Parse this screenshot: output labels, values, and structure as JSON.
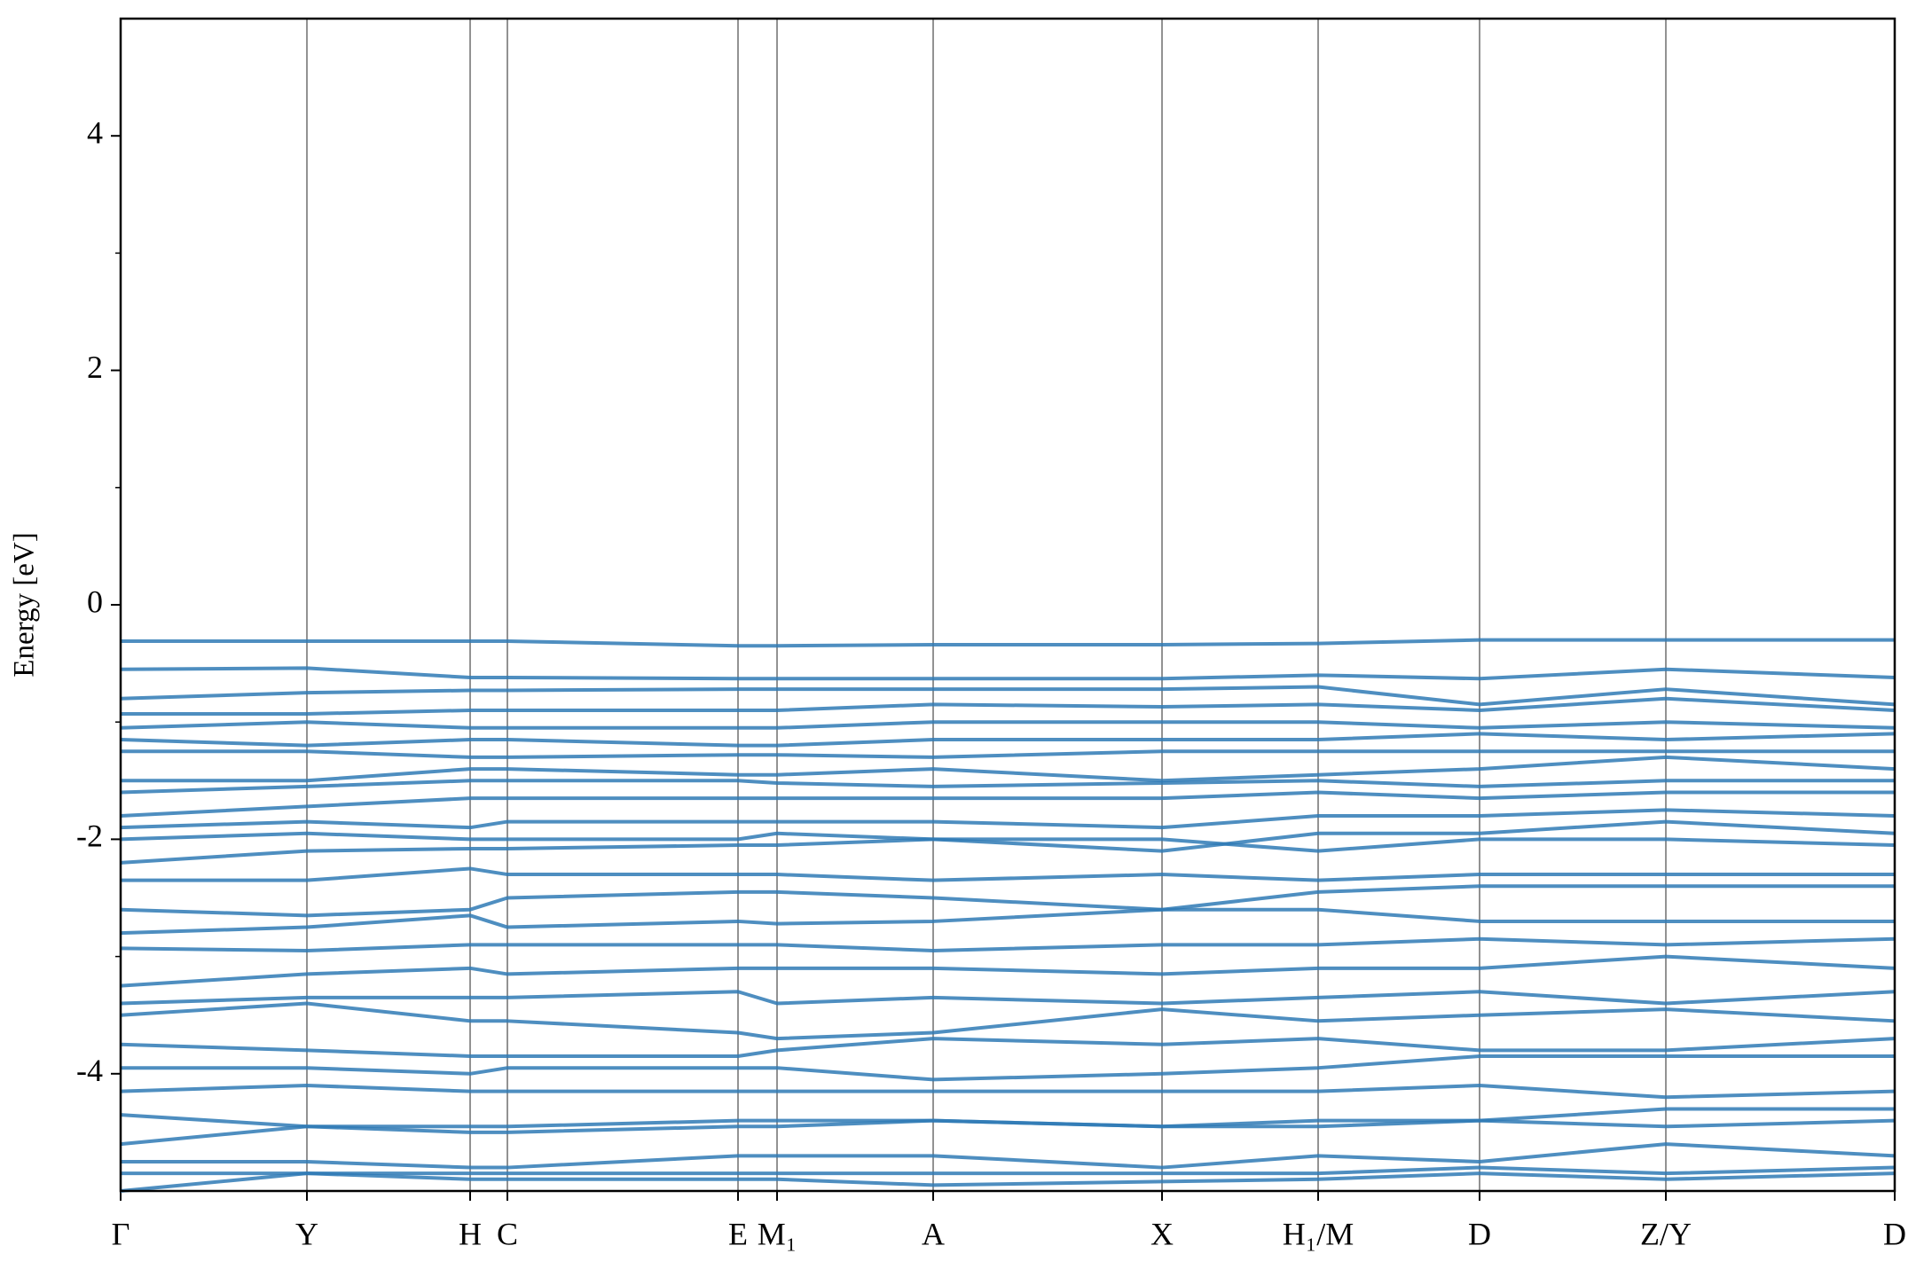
{
  "chart_data": {
    "type": "line",
    "ylabel": "Energy [eV]",
    "x": [
      0,
      0.105,
      0.197,
      0.218,
      0.348,
      0.37,
      0.458,
      0.587,
      0.675,
      0.766,
      0.871,
      1.0
    ],
    "xlim": [
      0,
      1.0
    ],
    "xticks": [
      {
        "value": 0,
        "label": "Γ"
      },
      {
        "value": 0.105,
        "label": "Y"
      },
      {
        "value": 0.197,
        "label": "H"
      },
      {
        "value": 0.218,
        "label": "C"
      },
      {
        "value": 0.348,
        "label": "E"
      },
      {
        "value": 0.37,
        "label": "M₁"
      },
      {
        "value": 0.458,
        "label": "A"
      },
      {
        "value": 0.587,
        "label": "X"
      },
      {
        "value": 0.675,
        "label": "H₁/M"
      },
      {
        "value": 0.766,
        "label": "D"
      },
      {
        "value": 0.871,
        "label": "Z/Y"
      },
      {
        "value": 1.0,
        "label": "D"
      }
    ],
    "ylim": [
      -5,
      5
    ],
    "yticks": [
      -4,
      -2,
      0,
      2,
      4
    ],
    "yminorticks": [
      -3,
      -1,
      1,
      3
    ],
    "grid": "x",
    "color": "#2f7ab5",
    "series": [
      {
        "values": [
          -0.31,
          -0.31,
          -0.31,
          -0.31,
          -0.35,
          -0.35,
          -0.34,
          -0.34,
          -0.33,
          -0.3,
          -0.3,
          -0.3
        ]
      },
      {
        "values": [
          -0.55,
          -0.54,
          -0.62,
          -0.62,
          -0.63,
          -0.63,
          -0.63,
          -0.63,
          -0.6,
          -0.63,
          -0.55,
          -0.62
        ]
      },
      {
        "values": [
          -0.8,
          -0.75,
          -0.73,
          -0.73,
          -0.72,
          -0.72,
          -0.72,
          -0.72,
          -0.7,
          -0.85,
          -0.72,
          -0.85
        ]
      },
      {
        "values": [
          -0.93,
          -0.93,
          -0.9,
          -0.9,
          -0.9,
          -0.9,
          -0.85,
          -0.87,
          -0.85,
          -0.9,
          -0.8,
          -0.9
        ]
      },
      {
        "values": [
          -1.05,
          -1.0,
          -1.05,
          -1.05,
          -1.05,
          -1.05,
          -1.0,
          -1.0,
          -1.0,
          -1.05,
          -1.0,
          -1.05
        ]
      },
      {
        "values": [
          -1.15,
          -1.2,
          -1.15,
          -1.15,
          -1.2,
          -1.2,
          -1.15,
          -1.15,
          -1.15,
          -1.1,
          -1.15,
          -1.1
        ]
      },
      {
        "values": [
          -1.25,
          -1.25,
          -1.3,
          -1.3,
          -1.28,
          -1.28,
          -1.3,
          -1.25,
          -1.25,
          -1.25,
          -1.25,
          -1.25
        ]
      },
      {
        "values": [
          -1.5,
          -1.5,
          -1.4,
          -1.4,
          -1.45,
          -1.45,
          -1.4,
          -1.5,
          -1.45,
          -1.4,
          -1.3,
          -1.4
        ]
      },
      {
        "values": [
          -1.6,
          -1.55,
          -1.5,
          -1.5,
          -1.5,
          -1.52,
          -1.55,
          -1.52,
          -1.5,
          -1.55,
          -1.5,
          -1.5
        ]
      },
      {
        "values": [
          -1.8,
          -1.72,
          -1.65,
          -1.65,
          -1.65,
          -1.65,
          -1.65,
          -1.65,
          -1.6,
          -1.65,
          -1.6,
          -1.6
        ]
      },
      {
        "values": [
          -1.9,
          -1.85,
          -1.9,
          -1.85,
          -1.85,
          -1.85,
          -1.85,
          -1.9,
          -1.8,
          -1.8,
          -1.75,
          -1.8
        ]
      },
      {
        "values": [
          -2.0,
          -1.95,
          -2.0,
          -2.0,
          -2.0,
          -1.95,
          -2.0,
          -2.1,
          -1.95,
          -1.95,
          -1.85,
          -1.95
        ]
      },
      {
        "values": [
          -2.2,
          -2.1,
          -2.08,
          -2.08,
          -2.05,
          -2.05,
          -2.0,
          -2.0,
          -2.1,
          -2.0,
          -2.0,
          -2.05
        ]
      },
      {
        "values": [
          -2.35,
          -2.35,
          -2.25,
          -2.3,
          -2.3,
          -2.3,
          -2.35,
          -2.3,
          -2.35,
          -2.3,
          -2.3,
          -2.3
        ]
      },
      {
        "values": [
          -2.6,
          -2.65,
          -2.6,
          -2.5,
          -2.45,
          -2.45,
          -2.5,
          -2.6,
          -2.45,
          -2.4,
          -2.4,
          -2.4
        ]
      },
      {
        "values": [
          -2.8,
          -2.75,
          -2.65,
          -2.75,
          -2.7,
          -2.72,
          -2.7,
          -2.6,
          -2.6,
          -2.7,
          -2.7,
          -2.7
        ]
      },
      {
        "values": [
          -2.93,
          -2.95,
          -2.9,
          -2.9,
          -2.9,
          -2.9,
          -2.95,
          -2.9,
          -2.9,
          -2.85,
          -2.9,
          -2.85
        ]
      },
      {
        "values": [
          -3.25,
          -3.15,
          -3.1,
          -3.15,
          -3.1,
          -3.1,
          -3.1,
          -3.15,
          -3.1,
          -3.1,
          -3.0,
          -3.1
        ]
      },
      {
        "values": [
          -3.4,
          -3.35,
          -3.35,
          -3.35,
          -3.3,
          -3.4,
          -3.35,
          -3.4,
          -3.35,
          -3.3,
          -3.4,
          -3.3
        ]
      },
      {
        "values": [
          -3.5,
          -3.4,
          -3.55,
          -3.55,
          -3.65,
          -3.7,
          -3.65,
          -3.45,
          -3.55,
          -3.5,
          -3.45,
          -3.55
        ]
      },
      {
        "values": [
          -3.75,
          -3.8,
          -3.85,
          -3.85,
          -3.85,
          -3.8,
          -3.7,
          -3.75,
          -3.7,
          -3.8,
          -3.8,
          -3.7
        ]
      },
      {
        "values": [
          -3.95,
          -3.95,
          -4.0,
          -3.95,
          -3.95,
          -3.95,
          -4.05,
          -4.0,
          -3.95,
          -3.85,
          -3.85,
          -3.85
        ]
      },
      {
        "values": [
          -4.15,
          -4.1,
          -4.15,
          -4.15,
          -4.15,
          -4.15,
          -4.15,
          -4.15,
          -4.15,
          -4.1,
          -4.2,
          -4.15
        ]
      },
      {
        "values": [
          -4.35,
          -4.45,
          -4.45,
          -4.45,
          -4.4,
          -4.4,
          -4.4,
          -4.45,
          -4.45,
          -4.4,
          -4.45,
          -4.4
        ]
      },
      {
        "values": [
          -4.6,
          -4.45,
          -4.5,
          -4.5,
          -4.45,
          -4.45,
          -4.4,
          -4.45,
          -4.4,
          -4.4,
          -4.3,
          -4.3
        ]
      },
      {
        "values": [
          -4.75,
          -4.75,
          -4.8,
          -4.8,
          -4.7,
          -4.7,
          -4.7,
          -4.8,
          -4.7,
          -4.75,
          -4.6,
          -4.7
        ]
      },
      {
        "values": [
          -4.85,
          -4.85,
          -4.85,
          -4.85,
          -4.85,
          -4.85,
          -4.85,
          -4.85,
          -4.85,
          -4.8,
          -4.85,
          -4.8
        ]
      },
      {
        "values": [
          -5.0,
          -4.85,
          -4.9,
          -4.9,
          -4.9,
          -4.9,
          -4.95,
          -4.92,
          -4.9,
          -4.85,
          -4.9,
          -4.85
        ]
      }
    ]
  }
}
